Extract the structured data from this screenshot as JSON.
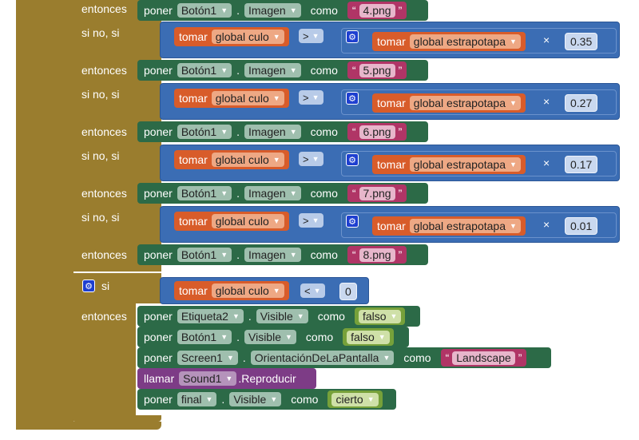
{
  "keywords": {
    "then": "entonces",
    "else_if": "si no, si",
    "if": "si"
  },
  "colors": {
    "control": "#9a7d2e",
    "set_block": "#2c6a47",
    "math": "#3b6db4",
    "variable": "#d85c2a",
    "text": "#b03566",
    "logic": "#77a13a",
    "procedure": "#7d3c86"
  },
  "icons": {
    "mutator": "gear-icon",
    "dropdown": "triangle-down-icon"
  },
  "image_sets": [
    {
      "verb": "poner",
      "component": "Botón1",
      "property": "Imagen",
      "to": "como",
      "value": "4.png"
    },
    {
      "verb": "poner",
      "component": "Botón1",
      "property": "Imagen",
      "to": "como",
      "value": "5.png"
    },
    {
      "verb": "poner",
      "component": "Botón1",
      "property": "Imagen",
      "to": "como",
      "value": "6.png"
    },
    {
      "verb": "poner",
      "component": "Botón1",
      "property": "Imagen",
      "to": "como",
      "value": "7.png"
    },
    {
      "verb": "poner",
      "component": "Botón1",
      "property": "Imagen",
      "to": "como",
      "value": "8.png"
    }
  ],
  "conditions": [
    {
      "get": "tomar",
      "left_var": "global culo",
      "op": ">",
      "right_var": "global estrapotapa",
      "times": "×",
      "factor": "0.35"
    },
    {
      "get": "tomar",
      "left_var": "global culo",
      "op": ">",
      "right_var": "global estrapotapa",
      "times": "×",
      "factor": "0.27"
    },
    {
      "get": "tomar",
      "left_var": "global culo",
      "op": ">",
      "right_var": "global estrapotapa",
      "times": "×",
      "factor": "0.17"
    },
    {
      "get": "tomar",
      "left_var": "global culo",
      "op": ">",
      "right_var": "global estrapotapa",
      "times": "×",
      "factor": "0.01"
    }
  ],
  "final_if": {
    "get": "tomar",
    "var": "global culo",
    "op": "<",
    "value": "0"
  },
  "final_actions": {
    "a1": {
      "verb": "poner",
      "component": "Etiqueta2",
      "property": "Visible",
      "to": "como",
      "value": "falso"
    },
    "a2": {
      "verb": "poner",
      "component": "Botón1",
      "property": "Visible",
      "to": "como",
      "value": "falso"
    },
    "a3": {
      "verb": "poner",
      "component": "Screen1",
      "property": "OrientaciónDeLaPantalla",
      "to": "como",
      "value": "Landscape"
    },
    "a4": {
      "verb": "llamar",
      "component": "Sound1",
      "method": ".Reproducir"
    },
    "a5": {
      "verb": "poner",
      "component": "final",
      "property": "Visible",
      "to": "como",
      "value": "cierto"
    }
  }
}
